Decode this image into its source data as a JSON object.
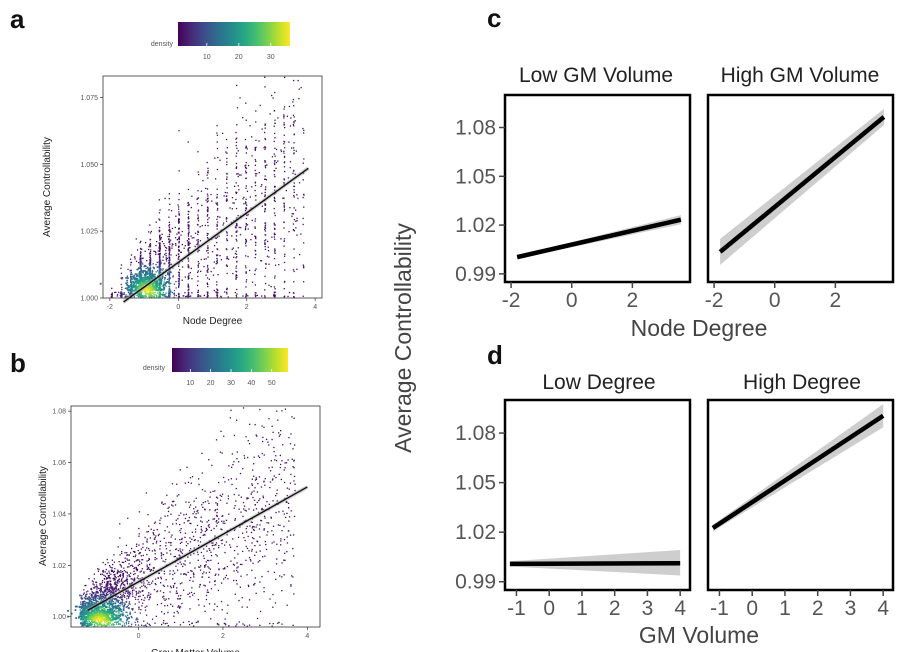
{
  "panel_labels": [
    "a",
    "b",
    "c",
    "d"
  ],
  "chart_data": [
    {
      "id": "a",
      "type": "scatter",
      "style": "density-colored scatter with linear fit",
      "xlabel": "Node Degree",
      "ylabel": "Average Controllability",
      "x_ticks": [
        "-2",
        "0",
        "2",
        "4"
      ],
      "y_ticks": [
        "1.000",
        "1.025",
        "1.050",
        "1.075"
      ],
      "xlim": [
        -2.2,
        4.2
      ],
      "ylim": [
        1.0,
        1.083
      ],
      "legend": {
        "title": "density",
        "ticks": [
          "10",
          "20",
          "30"
        ],
        "range": [
          1,
          36
        ],
        "colormap": "viridis",
        "placement": "top"
      },
      "fit": {
        "x": [
          -1.6,
          3.8
        ],
        "y": [
          0.9985,
          1.0485
        ]
      },
      "grid": false
    },
    {
      "id": "b",
      "type": "scatter",
      "style": "density-colored scatter with linear fit",
      "xlabel": "Gray Matter Volume",
      "ylabel": "Average Controllability",
      "x_ticks": [
        "0",
        "2",
        "4"
      ],
      "y_ticks": [
        "1.00",
        "1.02",
        "1.04",
        "1.06",
        "1.08"
      ],
      "xlim": [
        -1.6,
        4.3
      ],
      "ylim": [
        0.996,
        1.082
      ],
      "legend": {
        "title": "density",
        "ticks": [
          "10",
          "20",
          "30",
          "40",
          "50"
        ],
        "range": [
          1,
          58
        ],
        "colormap": "viridis",
        "placement": "top"
      },
      "fit": {
        "x": [
          -1.2,
          4.0
        ],
        "y": [
          1.0025,
          1.0505
        ]
      },
      "grid": false
    },
    {
      "id": "c",
      "type": "line",
      "style": "faceted linear fit with confidence band",
      "shared_ylabel": "Average Controllability",
      "xlabel": "Node Degree",
      "x_ticks": [
        "-2",
        "0",
        "2"
      ],
      "y_ticks": [
        "0.99",
        "1.02",
        "1.05",
        "1.08"
      ],
      "xlim": [
        -2.2,
        3.9
      ],
      "ylim": [
        0.985,
        1.1
      ],
      "facets": [
        {
          "title": "Low GM Volume",
          "x": [
            -1.8,
            3.6
          ],
          "y": [
            1.0003,
            1.0233
          ],
          "ci_low": [
            0.9993,
            1.0205
          ],
          "ci_high": [
            1.0013,
            1.0261
          ]
        },
        {
          "title": "High GM Volume",
          "x": [
            -1.8,
            3.6
          ],
          "y": [
            1.0035,
            1.0865
          ],
          "ci_low": [
            0.9955,
            1.0815
          ],
          "ci_high": [
            1.0115,
            1.0915
          ]
        }
      ],
      "grid": false
    },
    {
      "id": "d",
      "type": "line",
      "style": "faceted linear fit with confidence band",
      "xlabel": "GM Volume",
      "x_ticks": [
        "-1",
        "0",
        "1",
        "2",
        "3",
        "4"
      ],
      "y_ticks": [
        "0.99",
        "1.02",
        "1.05",
        "1.08"
      ],
      "xlim": [
        -1.35,
        4.3
      ],
      "ylim": [
        0.985,
        1.1
      ],
      "facets": [
        {
          "title": "Low Degree",
          "x": [
            -1.2,
            4.0
          ],
          "y": [
            1.0008,
            1.0012
          ],
          "ci_low": [
            0.9992,
            0.9938
          ],
          "ci_high": [
            1.0024,
            1.0092
          ]
        },
        {
          "title": "High Degree",
          "x": [
            -1.2,
            4.0
          ],
          "y": [
            1.0225,
            1.0905
          ],
          "ci_low": [
            1.0205,
            1.0835
          ],
          "ci_high": [
            1.0245,
            1.0975
          ]
        }
      ],
      "grid": false
    }
  ]
}
